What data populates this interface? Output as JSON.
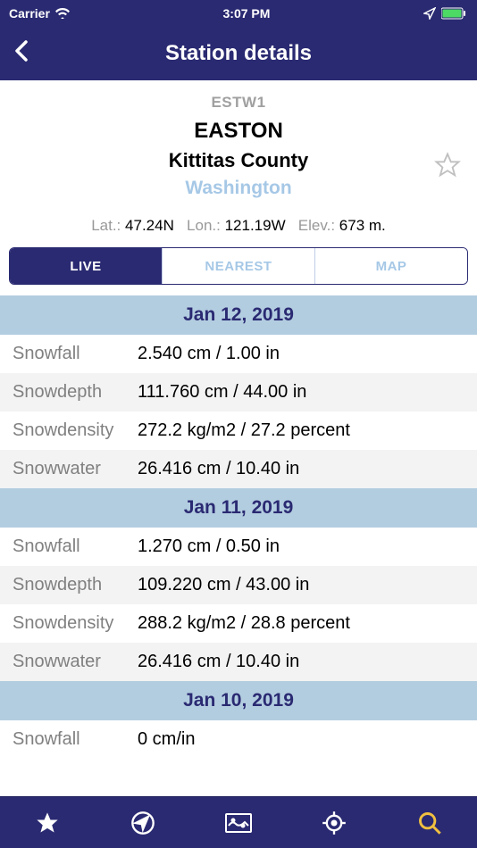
{
  "status_bar": {
    "carrier": "Carrier",
    "time": "3:07 PM"
  },
  "nav": {
    "title": "Station details"
  },
  "station": {
    "id": "ESTW1",
    "name": "EASTON",
    "county": "Kittitas County",
    "state": "Washington"
  },
  "coords": {
    "lat_label": "Lat.:",
    "lat_value": "47.24N",
    "lon_label": "Lon.:",
    "lon_value": "121.19W",
    "elev_label": "Elev.:",
    "elev_value": "673 m."
  },
  "segments": {
    "live": "LIVE",
    "nearest": "NEAREST",
    "map": "MAP"
  },
  "colors": {
    "primary": "#2a2a72",
    "date_bg": "#b3cde0",
    "state_text": "#a6c8e6",
    "muted": "#808080",
    "row_alt": "#f3f3f3",
    "accent": "#f0c040"
  },
  "data": [
    {
      "date": "Jan 12, 2019",
      "rows": [
        {
          "label": "Snowfall",
          "value": "2.540 cm / 1.00 in"
        },
        {
          "label": "Snowdepth",
          "value": "111.760 cm / 44.00 in"
        },
        {
          "label": "Snowdensity",
          "value": "272.2 kg/m2 / 27.2 percent"
        },
        {
          "label": "Snowwater",
          "value": "26.416 cm / 10.40 in"
        }
      ]
    },
    {
      "date": "Jan 11, 2019",
      "rows": [
        {
          "label": "Snowfall",
          "value": "1.270 cm / 0.50 in"
        },
        {
          "label": "Snowdepth",
          "value": "109.220 cm / 43.00 in"
        },
        {
          "label": "Snowdensity",
          "value": "288.2 kg/m2 / 28.8 percent"
        },
        {
          "label": "Snowwater",
          "value": "26.416 cm / 10.40 in"
        }
      ]
    },
    {
      "date": "Jan 10, 2019",
      "rows": [
        {
          "label": "Snowfall",
          "value": "0 cm/in"
        }
      ]
    }
  ]
}
